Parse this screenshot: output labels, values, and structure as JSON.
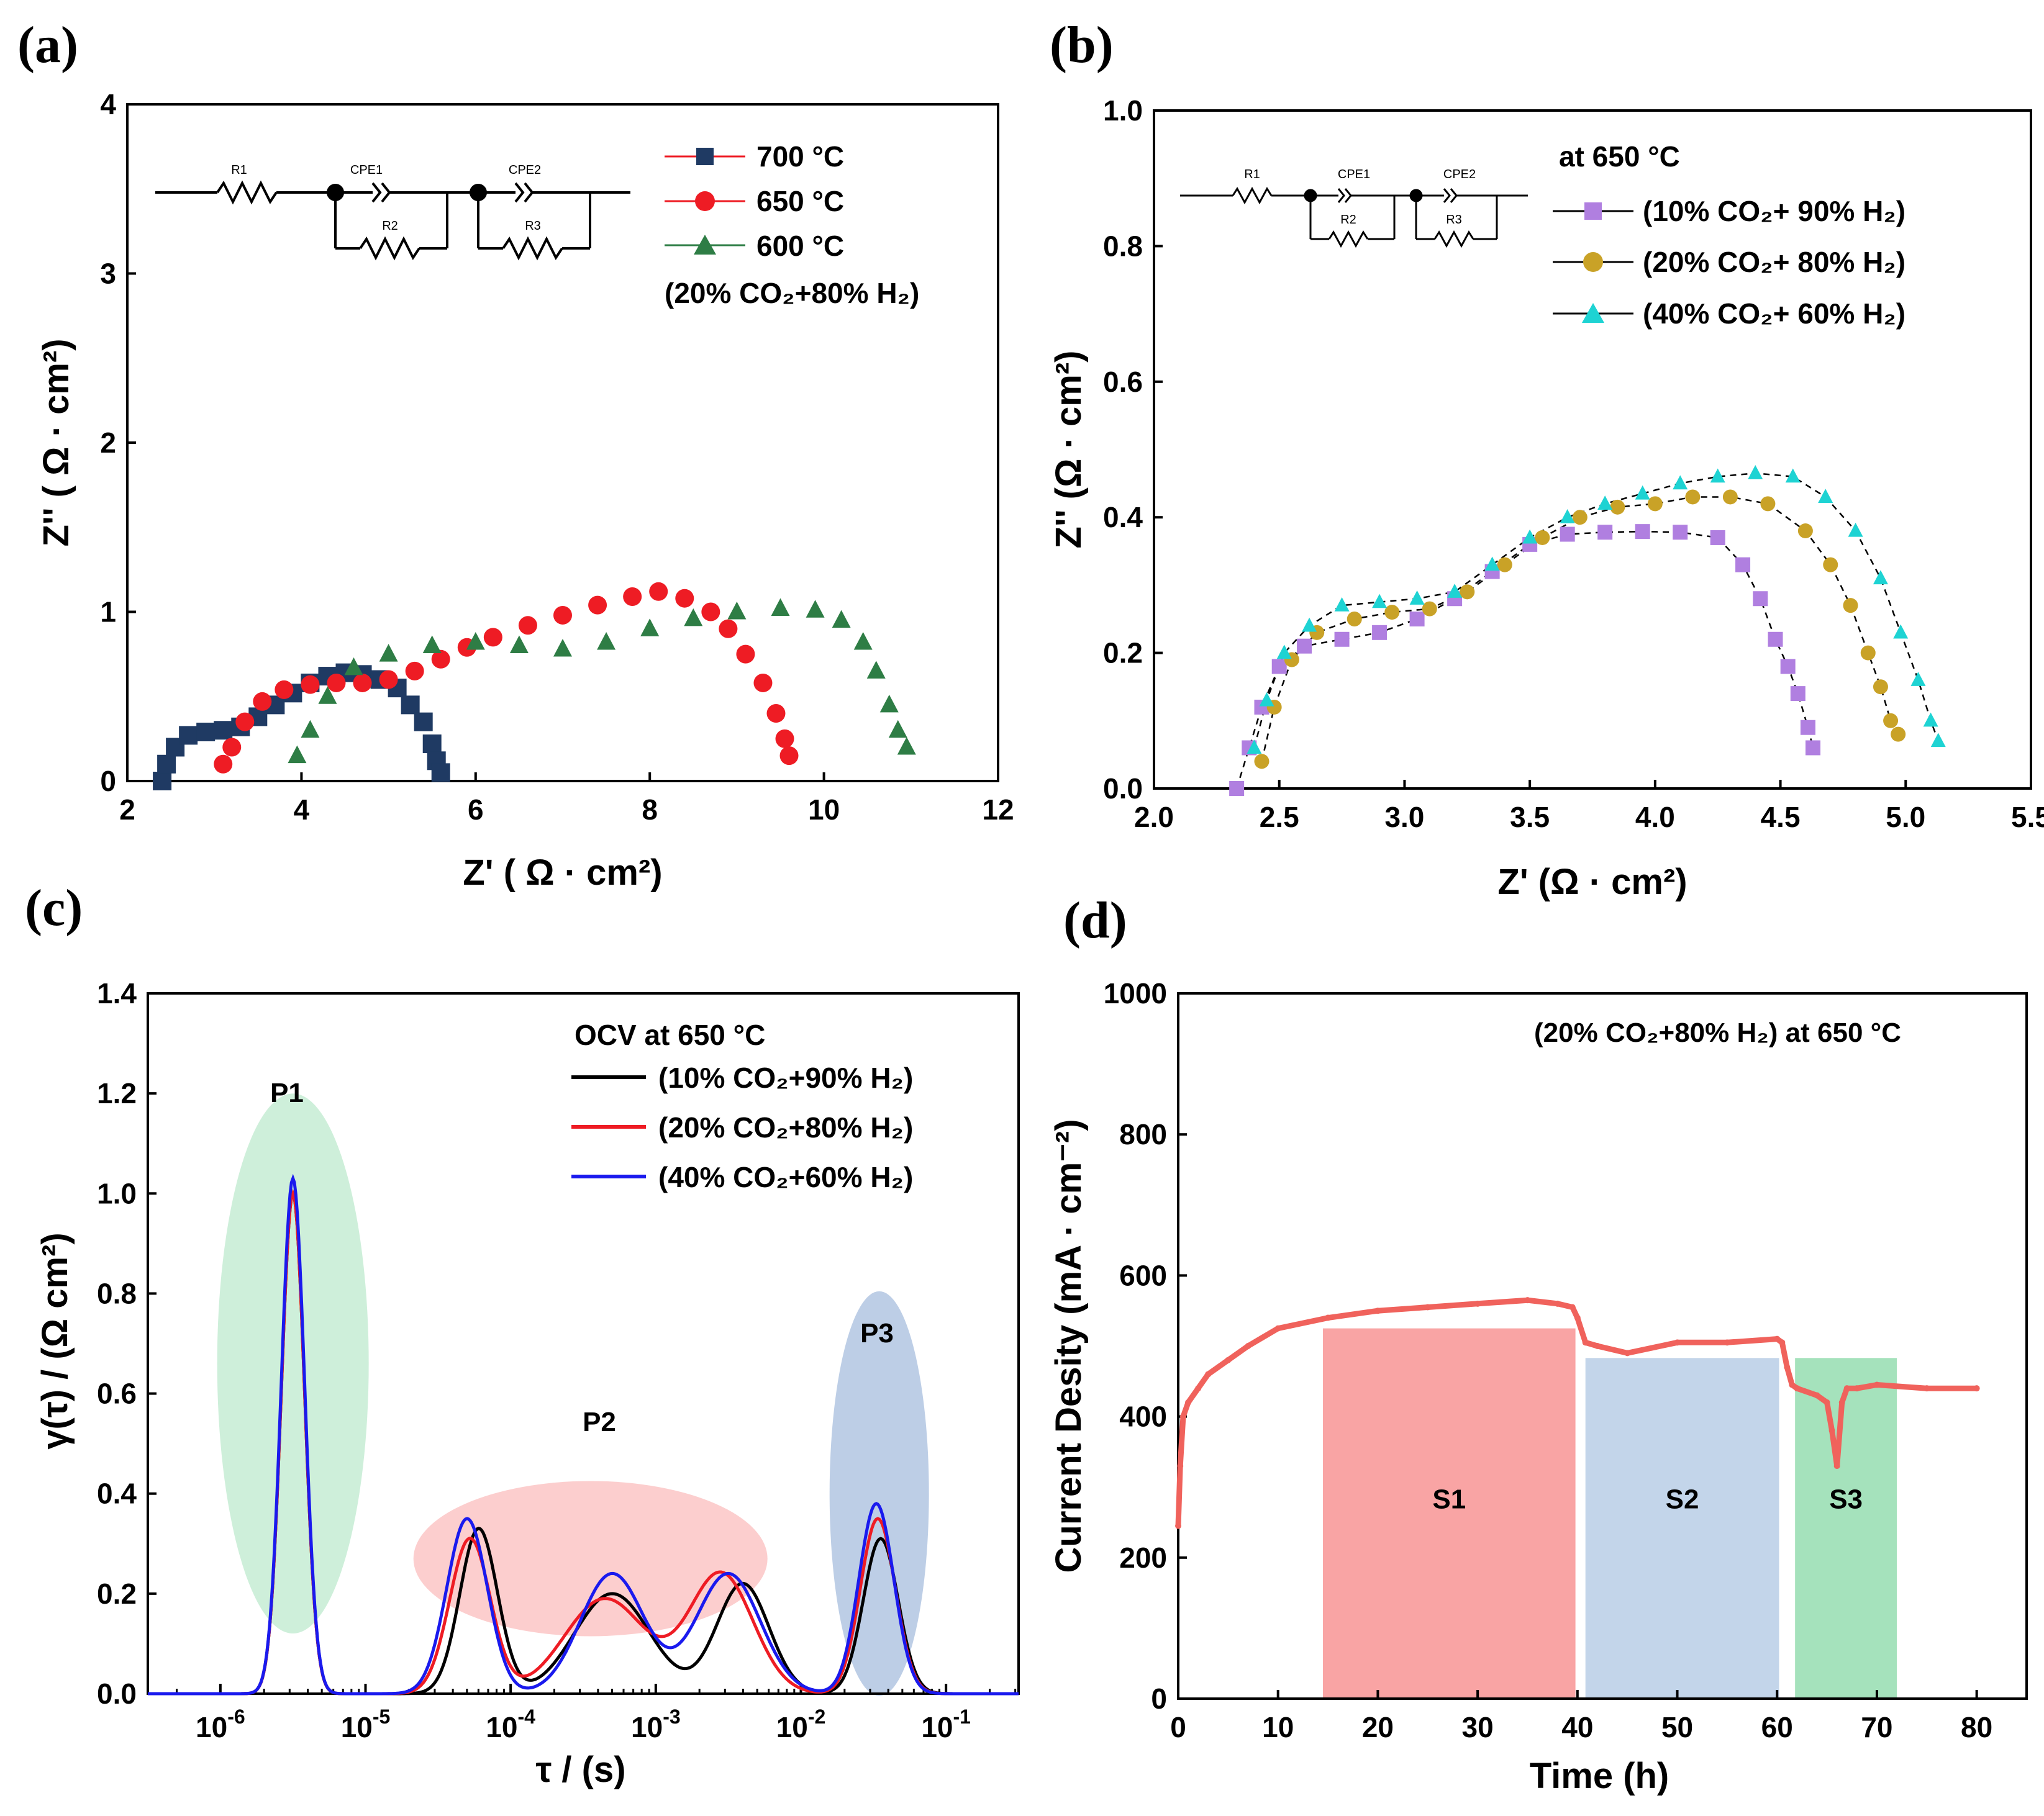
{
  "chart_data": [
    {
      "id": "a",
      "panel_label": "(a)",
      "type": "scatter",
      "xlabel": "Z' ( Ω · cm²)",
      "ylabel": "Z'' ( Ω · cm²)",
      "xlim": [
        2,
        12
      ],
      "ylim": [
        0,
        4
      ],
      "xticks": [
        "2",
        "4",
        "6",
        "8",
        "10",
        "12"
      ],
      "yticks": [
        "0",
        "1",
        "2",
        "3",
        "4"
      ],
      "legend_note": "(20% CO₂+80% H₂)",
      "circuit": {
        "labels": [
          "R1",
          "CPE1",
          "R2",
          "CPE2",
          "R3"
        ]
      },
      "colors": {
        "700": "#1f3a63",
        "650": "#ee1c24",
        "600": "#2e7d45"
      },
      "series": [
        {
          "name": "700 °C",
          "marker": "square",
          "color": "#1f3a63",
          "x": [
            2.4,
            2.45,
            2.55,
            2.7,
            2.9,
            3.1,
            3.3,
            3.5,
            3.7,
            3.9,
            4.1,
            4.3,
            4.5,
            4.7,
            4.9,
            5.1,
            5.25,
            5.4,
            5.5,
            5.55,
            5.6
          ],
          "y": [
            0.0,
            0.1,
            0.2,
            0.27,
            0.29,
            0.3,
            0.32,
            0.38,
            0.45,
            0.52,
            0.58,
            0.62,
            0.64,
            0.63,
            0.6,
            0.55,
            0.45,
            0.35,
            0.22,
            0.12,
            0.05
          ]
        },
        {
          "name": "650 °C",
          "marker": "circle",
          "color": "#ee1c24",
          "x": [
            3.1,
            3.2,
            3.35,
            3.55,
            3.8,
            4.1,
            4.4,
            4.7,
            5.0,
            5.3,
            5.6,
            5.9,
            6.2,
            6.6,
            7.0,
            7.4,
            7.8,
            8.1,
            8.4,
            8.7,
            8.9,
            9.1,
            9.3,
            9.45,
            9.55,
            9.6
          ],
          "y": [
            0.1,
            0.2,
            0.35,
            0.47,
            0.54,
            0.57,
            0.58,
            0.58,
            0.6,
            0.65,
            0.72,
            0.79,
            0.85,
            0.92,
            0.98,
            1.04,
            1.09,
            1.12,
            1.08,
            1.0,
            0.9,
            0.75,
            0.58,
            0.4,
            0.25,
            0.15
          ]
        },
        {
          "name": "600 °C",
          "marker": "triangle",
          "color": "#2e7d45",
          "x": [
            3.95,
            4.1,
            4.3,
            4.6,
            5.0,
            5.5,
            6.0,
            6.5,
            7.0,
            7.5,
            8.0,
            8.5,
            9.0,
            9.5,
            9.9,
            10.2,
            10.45,
            10.6,
            10.75,
            10.85,
            10.95
          ],
          "y": [
            0.15,
            0.3,
            0.5,
            0.67,
            0.75,
            0.8,
            0.82,
            0.8,
            0.78,
            0.82,
            0.9,
            0.96,
            1.0,
            1.02,
            1.01,
            0.95,
            0.82,
            0.65,
            0.45,
            0.3,
            0.2
          ]
        }
      ]
    },
    {
      "id": "b",
      "panel_label": "(b)",
      "type": "scatter",
      "xlabel": "Z' (Ω · cm²)",
      "ylabel": "Z'' (Ω · cm²)",
      "xlim": [
        2.0,
        5.5
      ],
      "ylim": [
        0.0,
        1.0
      ],
      "xticks": [
        "2.0",
        "2.5",
        "3.0",
        "3.5",
        "4.0",
        "4.5",
        "5.0",
        "5.5"
      ],
      "yticks": [
        "0.0",
        "0.2",
        "0.4",
        "0.6",
        "0.8",
        "1.0"
      ],
      "legend_title": "at 650 °C",
      "circuit": {
        "labels": [
          "R1",
          "CPE1",
          "R2",
          "CPE2",
          "R3"
        ]
      },
      "series": [
        {
          "name": "(10% CO₂+ 90% H₂)",
          "marker": "square",
          "color": "#b07fe0",
          "x": [
            2.33,
            2.38,
            2.43,
            2.5,
            2.6,
            2.75,
            2.9,
            3.05,
            3.2,
            3.35,
            3.5,
            3.65,
            3.8,
            3.95,
            4.1,
            4.25,
            4.35,
            4.42,
            4.48,
            4.53,
            4.57,
            4.61,
            4.63
          ],
          "y": [
            0.0,
            0.06,
            0.12,
            0.18,
            0.21,
            0.22,
            0.23,
            0.25,
            0.28,
            0.32,
            0.36,
            0.375,
            0.378,
            0.379,
            0.378,
            0.37,
            0.33,
            0.28,
            0.22,
            0.18,
            0.14,
            0.09,
            0.06
          ]
        },
        {
          "name": "(20% CO₂+ 80% H₂)",
          "marker": "circle",
          "color": "#c9a227",
          "x": [
            2.43,
            2.48,
            2.55,
            2.65,
            2.8,
            2.95,
            3.1,
            3.25,
            3.4,
            3.55,
            3.7,
            3.85,
            4.0,
            4.15,
            4.3,
            4.45,
            4.6,
            4.7,
            4.78,
            4.85,
            4.9,
            4.94,
            4.97
          ],
          "y": [
            0.04,
            0.12,
            0.19,
            0.23,
            0.25,
            0.26,
            0.265,
            0.29,
            0.33,
            0.37,
            0.4,
            0.415,
            0.42,
            0.43,
            0.43,
            0.42,
            0.38,
            0.33,
            0.27,
            0.2,
            0.15,
            0.1,
            0.08
          ]
        },
        {
          "name": "(40% CO₂+ 60% H₂)",
          "marker": "triangle",
          "color": "#1ed3d3",
          "x": [
            2.4,
            2.45,
            2.52,
            2.62,
            2.75,
            2.9,
            3.05,
            3.2,
            3.35,
            3.5,
            3.65,
            3.8,
            3.95,
            4.1,
            4.25,
            4.4,
            4.55,
            4.68,
            4.8,
            4.9,
            4.98,
            5.05,
            5.1,
            5.13
          ],
          "y": [
            0.06,
            0.13,
            0.2,
            0.24,
            0.27,
            0.275,
            0.28,
            0.29,
            0.33,
            0.37,
            0.4,
            0.42,
            0.435,
            0.45,
            0.46,
            0.465,
            0.46,
            0.43,
            0.38,
            0.31,
            0.23,
            0.16,
            0.1,
            0.07
          ]
        }
      ]
    },
    {
      "id": "c",
      "panel_label": "(c)",
      "type": "line",
      "xlabel": "τ / (s)",
      "ylabel": "γ(τ) / (Ω cm²)",
      "xscale": "log",
      "xlim_log10": [
        -6.5,
        -0.5
      ],
      "ylim": [
        0.0,
        1.4
      ],
      "xtick_exponents": [
        "-6",
        "-5",
        "-4",
        "-3",
        "-2",
        "-1"
      ],
      "yticks": [
        "0.0",
        "0.2",
        "0.4",
        "0.6",
        "0.8",
        "1.0",
        "1.2",
        "1.4"
      ],
      "legend_title": "OCV at 650 °C",
      "peak_labels": [
        "P1",
        "P2",
        "P3"
      ],
      "series": [
        {
          "name": "(10% CO₂+90% H₂)",
          "color": "#000000",
          "peaks": [
            {
              "mu": -5.5,
              "a": 1.0,
              "s": 0.08
            },
            {
              "mu": -4.22,
              "a": 0.33,
              "s": 0.13
            },
            {
              "mu": -3.3,
              "a": 0.2,
              "s": 0.26
            },
            {
              "mu": -2.4,
              "a": 0.22,
              "s": 0.18
            },
            {
              "mu": -1.45,
              "a": 0.31,
              "s": 0.12
            }
          ]
        },
        {
          "name": "(20% CO₂+80% H₂)",
          "color": "#ee1c24",
          "peaks": [
            {
              "mu": -5.5,
              "a": 1.0,
              "s": 0.08
            },
            {
              "mu": -4.28,
              "a": 0.31,
              "s": 0.14
            },
            {
              "mu": -3.35,
              "a": 0.19,
              "s": 0.28
            },
            {
              "mu": -2.55,
              "a": 0.24,
              "s": 0.22
            },
            {
              "mu": -1.47,
              "a": 0.35,
              "s": 0.12
            }
          ]
        },
        {
          "name": "(40% CO₂+60% H₂)",
          "color": "#1a1aee",
          "peaks": [
            {
              "mu": -5.5,
              "a": 1.03,
              "s": 0.08
            },
            {
              "mu": -4.3,
              "a": 0.35,
              "s": 0.14
            },
            {
              "mu": -3.3,
              "a": 0.24,
              "s": 0.22
            },
            {
              "mu": -2.5,
              "a": 0.24,
              "s": 0.22
            },
            {
              "mu": -1.48,
              "a": 0.38,
              "s": 0.12
            }
          ]
        }
      ]
    },
    {
      "id": "d",
      "panel_label": "(d)",
      "type": "line",
      "xlabel": "Time (h)",
      "ylabel": "Current Desity (mA · cm⁻²)",
      "xlim": [
        0,
        85
      ],
      "ylim": [
        0,
        1000
      ],
      "xticks": [
        "0",
        "10",
        "20",
        "30",
        "40",
        "50",
        "60",
        "70",
        "80"
      ],
      "yticks": [
        "0",
        "200",
        "400",
        "600",
        "800",
        "1000"
      ],
      "annotation": "(20% CO₂+80% H₂) at 650 °C",
      "stages": [
        {
          "label": "S1",
          "x0": 14.5,
          "x1": 39.8,
          "top": 525,
          "color": "#f9a4a4"
        },
        {
          "label": "S2",
          "x0": 40.8,
          "x1": 60.2,
          "top": 483,
          "color": "#c3d5ea"
        },
        {
          "label": "S3",
          "x0": 61.8,
          "x1": 72.0,
          "top": 483,
          "color": "#a5e2bc"
        }
      ],
      "series": [
        {
          "name": "current",
          "color": "#f0625c",
          "x": [
            0,
            0.2,
            0.5,
            1,
            2,
            3,
            5,
            7,
            10,
            15,
            20,
            25,
            30,
            35,
            38,
            39.5,
            40,
            40.8,
            42,
            45,
            50,
            55,
            60,
            60.5,
            61,
            61.5,
            62,
            64,
            65,
            65.5,
            66,
            66.5,
            67,
            68,
            70,
            75,
            80
          ],
          "y": [
            245,
            330,
            400,
            420,
            440,
            460,
            480,
            500,
            525,
            540,
            550,
            555,
            560,
            565,
            560,
            555,
            540,
            505,
            500,
            490,
            505,
            505,
            510,
            505,
            470,
            445,
            440,
            430,
            420,
            380,
            330,
            420,
            440,
            440,
            445,
            440,
            440
          ]
        }
      ]
    }
  ]
}
